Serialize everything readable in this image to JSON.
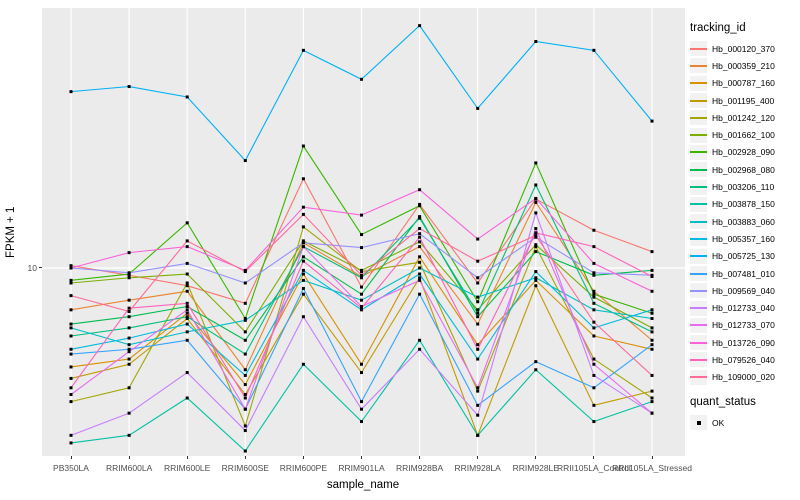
{
  "colors": {
    "panel_bg": "#EBEBEB",
    "grid": "#FFFFFF",
    "axis_text": "#4D4D4D",
    "tick_mark": "#333333",
    "point": "#000000",
    "legend_key_bg": "#F2F2F2"
  },
  "y_axis": {
    "title": "FPKM + 1",
    "tick_labels": [
      "10"
    ],
    "scale": "log10"
  },
  "x_axis": {
    "title": "sample_name"
  },
  "legend": {
    "tracking_title": "tracking_id",
    "quant_title": "quant_status",
    "quant_items": [
      {
        "label": "OK",
        "shape": "black-square-point"
      }
    ]
  },
  "chart_data": {
    "type": "line",
    "title": "",
    "xlabel": "sample_name",
    "ylabel": "FPKM + 1",
    "y_scale": "log10",
    "y_ticks": [
      10
    ],
    "ylim": [
      2.0,
      92
    ],
    "grid": "major-only",
    "legend_position": "right",
    "point_shape": "filled-square",
    "point_color": "#000000",
    "x_categories": [
      "PB350LA",
      "RRIM600LA",
      "RRIM600LE",
      "RRIM600SE",
      "RRIM600PE",
      "RRIM901LA",
      "RRIM928BA",
      "RRIM928LA",
      "RRIM928LE",
      "RRII105LA_Control",
      "RRII105LA_Stressed"
    ],
    "series": [
      {
        "name": "Hb_000120_370",
        "color": "#F8766D",
        "values": [
          10.2,
          9.4,
          8.6,
          7.4,
          21.4,
          8.5,
          17.2,
          8.8,
          18.0,
          13.8,
          11.5
        ]
      },
      {
        "name": "Hb_000359_210",
        "color": "#EA8331",
        "values": [
          7.0,
          7.6,
          8.2,
          4.2,
          12.4,
          9.3,
          12.0,
          6.2,
          17.5,
          8.2,
          5.4
        ]
      },
      {
        "name": "Hb_000787_160",
        "color": "#D89000",
        "values": [
          4.3,
          4.6,
          6.8,
          3.7,
          9.5,
          4.4,
          11.0,
          5.2,
          9.0,
          5.6,
          5.0
        ]
      },
      {
        "name": "Hb_001195_400",
        "color": "#C09B00",
        "values": [
          3.9,
          4.4,
          6.5,
          3.4,
          8.0,
          4.1,
          9.2,
          2.4,
          8.6,
          3.1,
          3.5
        ]
      },
      {
        "name": "Hb_001242_120",
        "color": "#A3A500",
        "values": [
          3.2,
          3.6,
          8.8,
          2.6,
          14.2,
          9.7,
          10.5,
          3.5,
          12.0,
          4.6,
          3.3
        ]
      },
      {
        "name": "Hb_001662_100",
        "color": "#7CAE00",
        "values": [
          8.8,
          9.2,
          9.5,
          5.8,
          12.6,
          9.8,
          12.5,
          7.0,
          12.2,
          7.8,
          6.0
        ]
      },
      {
        "name": "Hb_002928_090",
        "color": "#39B600",
        "values": [
          9.0,
          9.5,
          14.7,
          6.5,
          28.3,
          13.3,
          17.0,
          7.5,
          24.5,
          8.0,
          6.8
        ]
      },
      {
        "name": "Hb_002968_080",
        "color": "#00BB4E",
        "values": [
          6.2,
          6.6,
          7.2,
          5.4,
          11.0,
          8.0,
          15.5,
          6.6,
          11.5,
          9.4,
          9.8
        ]
      },
      {
        "name": "Hb_003206_110",
        "color": "#00BF7D",
        "values": [
          5.6,
          6.0,
          6.6,
          4.8,
          12.0,
          9.2,
          15.3,
          6.8,
          20.3,
          7.4,
          5.8
        ]
      },
      {
        "name": "Hb_003878_150",
        "color": "#00C1A3",
        "values": [
          2.25,
          2.4,
          3.3,
          2.1,
          4.4,
          2.7,
          5.4,
          2.4,
          4.2,
          2.7,
          3.2
        ]
      },
      {
        "name": "Hb_003883_060",
        "color": "#00BFC4",
        "values": [
          6.0,
          5.2,
          5.8,
          6.4,
          9.0,
          7.6,
          10.0,
          7.8,
          9.2,
          7.0,
          6.5
        ]
      },
      {
        "name": "Hb_005357_160",
        "color": "#00BAE0",
        "values": [
          5.0,
          5.5,
          6.2,
          4.0,
          9.8,
          7.0,
          9.5,
          4.6,
          9.7,
          6.0,
          7.0
        ]
      },
      {
        "name": "Hb_005725_130",
        "color": "#00B0F6",
        "values": [
          45,
          47,
          43,
          25,
          64,
          50,
          79,
          39,
          69,
          64,
          35
        ]
      },
      {
        "name": "Hb_007481_010",
        "color": "#35A2FF",
        "values": [
          4.8,
          5.0,
          5.4,
          3.0,
          8.4,
          3.2,
          8.0,
          3.1,
          4.5,
          3.6,
          5.2
        ]
      },
      {
        "name": "Hb_009569_040",
        "color": "#9590FF",
        "values": [
          10.0,
          9.6,
          10.4,
          8.8,
          12.4,
          11.9,
          13.4,
          9.2,
          13.0,
          9.6,
          9.4
        ]
      },
      {
        "name": "Hb_012733_040",
        "color": "#C77CFF",
        "values": [
          2.4,
          2.9,
          4.1,
          2.5,
          6.6,
          3.0,
          5.0,
          2.85,
          16.0,
          4.0,
          2.9
        ]
      },
      {
        "name": "Hb_012733_070",
        "color": "#E76BF3",
        "values": [
          3.4,
          4.9,
          7.0,
          3.0,
          12.0,
          7.2,
          9.0,
          3.6,
          14.0,
          4.4,
          2.9
        ]
      },
      {
        "name": "Hb_013726_090",
        "color": "#FA62DB",
        "values": [
          10.0,
          11.4,
          12.0,
          9.8,
          16.8,
          15.7,
          19.5,
          12.8,
          18.1,
          10.4,
          8.2
        ]
      },
      {
        "name": "Hb_079526_040",
        "color": "#FF62BC",
        "values": [
          3.6,
          7.1,
          7.4,
          3.3,
          10.6,
          7.1,
          13.0,
          5.0,
          13.5,
          12.0,
          9.3
        ]
      },
      {
        "name": "Hb_109000_020",
        "color": "#FF6A98",
        "values": [
          7.9,
          6.9,
          12.6,
          9.7,
          15.8,
          9.4,
          14.0,
          10.6,
          13.2,
          6.3,
          4.0
        ]
      }
    ]
  }
}
